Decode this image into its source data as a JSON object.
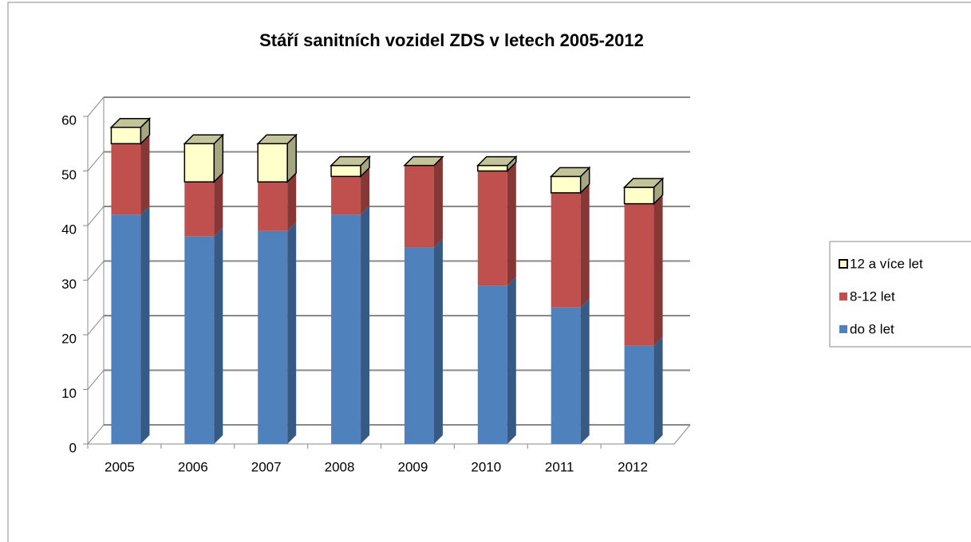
{
  "chart_data": {
    "type": "bar",
    "stacked": true,
    "title": "Stáří sanitních vozidel ZDS v letech 2005-2012",
    "categories": [
      "2005",
      "2006",
      "2007",
      "2008",
      "2009",
      "2010",
      "2011",
      "2012"
    ],
    "series": [
      {
        "name": "do 8 let",
        "color": "#4f81bd",
        "values": [
          42,
          38,
          39,
          42,
          36,
          29,
          25,
          18
        ]
      },
      {
        "name": "8-12 let",
        "color": "#c0504d",
        "values": [
          13,
          10,
          9,
          7,
          15,
          21,
          21,
          26
        ]
      },
      {
        "name": "12 a více let",
        "color": "#ffffcc",
        "values": [
          3,
          7,
          7,
          2,
          0,
          1,
          3,
          3
        ]
      }
    ],
    "ylim": [
      0,
      60
    ],
    "yticks": [
      0,
      10,
      20,
      30,
      40,
      50,
      60
    ],
    "grid": true,
    "legend": "right"
  }
}
